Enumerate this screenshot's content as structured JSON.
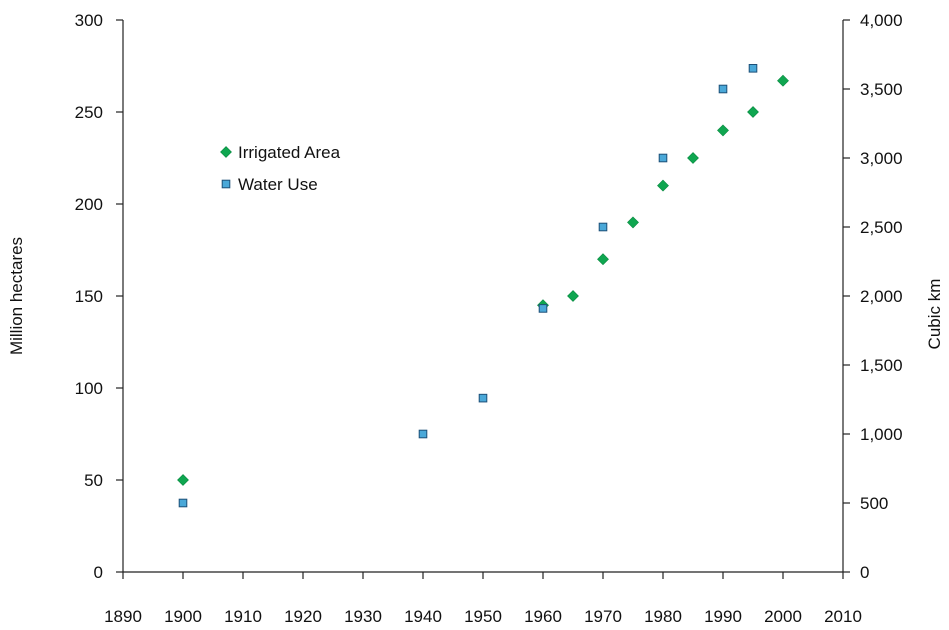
{
  "chart_data": {
    "type": "scatter",
    "title": "",
    "xlabel": "",
    "ylabel": "Million hectares",
    "y2label": "Cubic km",
    "xlim": [
      1890,
      2010
    ],
    "ylim": [
      0,
      300
    ],
    "y2lim": [
      0,
      4000
    ],
    "x_ticks": [
      "1890",
      "1900",
      "1910",
      "1920",
      "1930",
      "1940",
      "1950",
      "1960",
      "1970",
      "1980",
      "1990",
      "2000",
      "2010"
    ],
    "y_ticks": [
      "0",
      "50",
      "100",
      "150",
      "200",
      "250",
      "300"
    ],
    "y2_ticks": [
      "0",
      "500",
      "1,000",
      "1,500",
      "2,000",
      "2,500",
      "3,000",
      "3,500",
      "4,000"
    ],
    "grid": false,
    "legend_position": "upper-left",
    "series": [
      {
        "name": "Irrigated Area",
        "axis": "left",
        "marker": "diamond",
        "color": "#0fa650",
        "x": [
          1900,
          1960,
          1965,
          1970,
          1975,
          1980,
          1985,
          1990,
          1995,
          2000
        ],
        "y": [
          50,
          145,
          150,
          170,
          190,
          210,
          225,
          240,
          250,
          267
        ]
      },
      {
        "name": "Water Use",
        "axis": "right",
        "marker": "square",
        "color": "#4aa8d8",
        "x": [
          1900,
          1940,
          1950,
          1960,
          1970,
          1980,
          1990,
          1995
        ],
        "y": [
          500,
          1000,
          1260,
          1910,
          2500,
          3000,
          3500,
          3650
        ]
      }
    ]
  }
}
